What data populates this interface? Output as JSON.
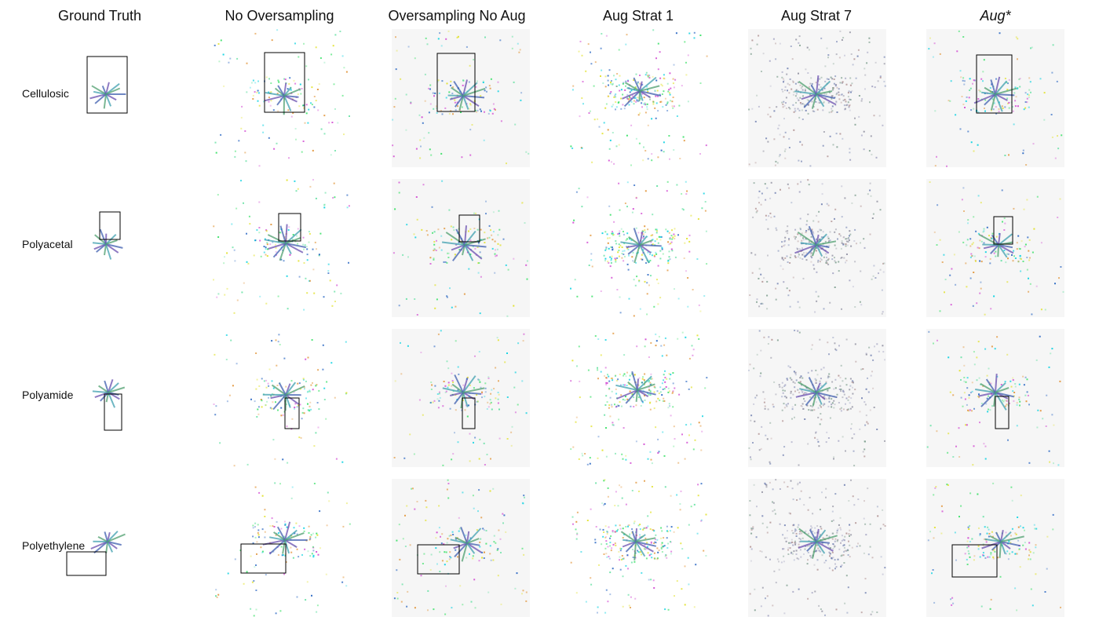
{
  "header": {
    "columns": [
      "Ground Truth",
      "No Oversampling",
      "Oversampling No Aug",
      "Aug Strat 1",
      "Aug Strat 7",
      "Aug*"
    ]
  },
  "rows": [
    "Cellulosic",
    "Polyacetal",
    "Polyamide",
    "Polyethylene"
  ]
}
